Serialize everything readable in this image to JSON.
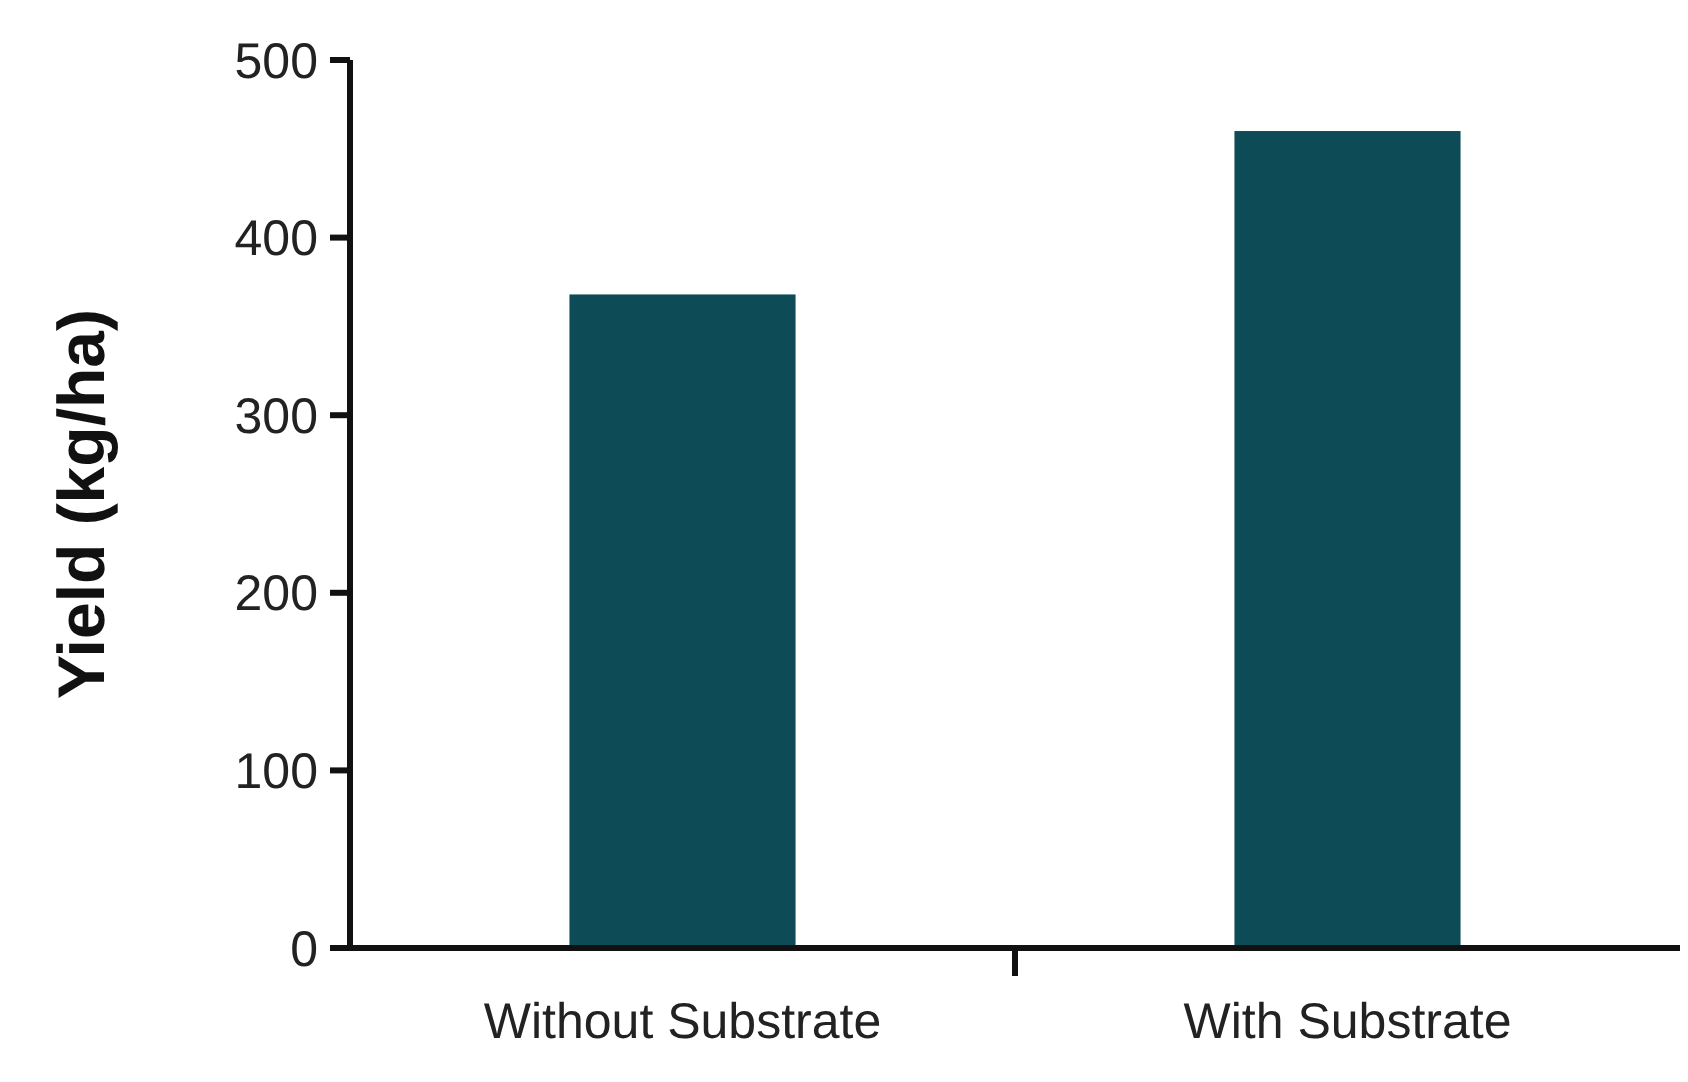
{
  "chart_data": {
    "type": "bar",
    "ylabel": "Yield (kg/ha)",
    "categories": [
      "Without Substrate",
      "With Substrate"
    ],
    "values": [
      368,
      460
    ],
    "color": "#0d4c57",
    "ylim": [
      0,
      500
    ],
    "yticks": [
      0,
      100,
      200,
      300,
      400,
      500
    ],
    "grid": false
  }
}
